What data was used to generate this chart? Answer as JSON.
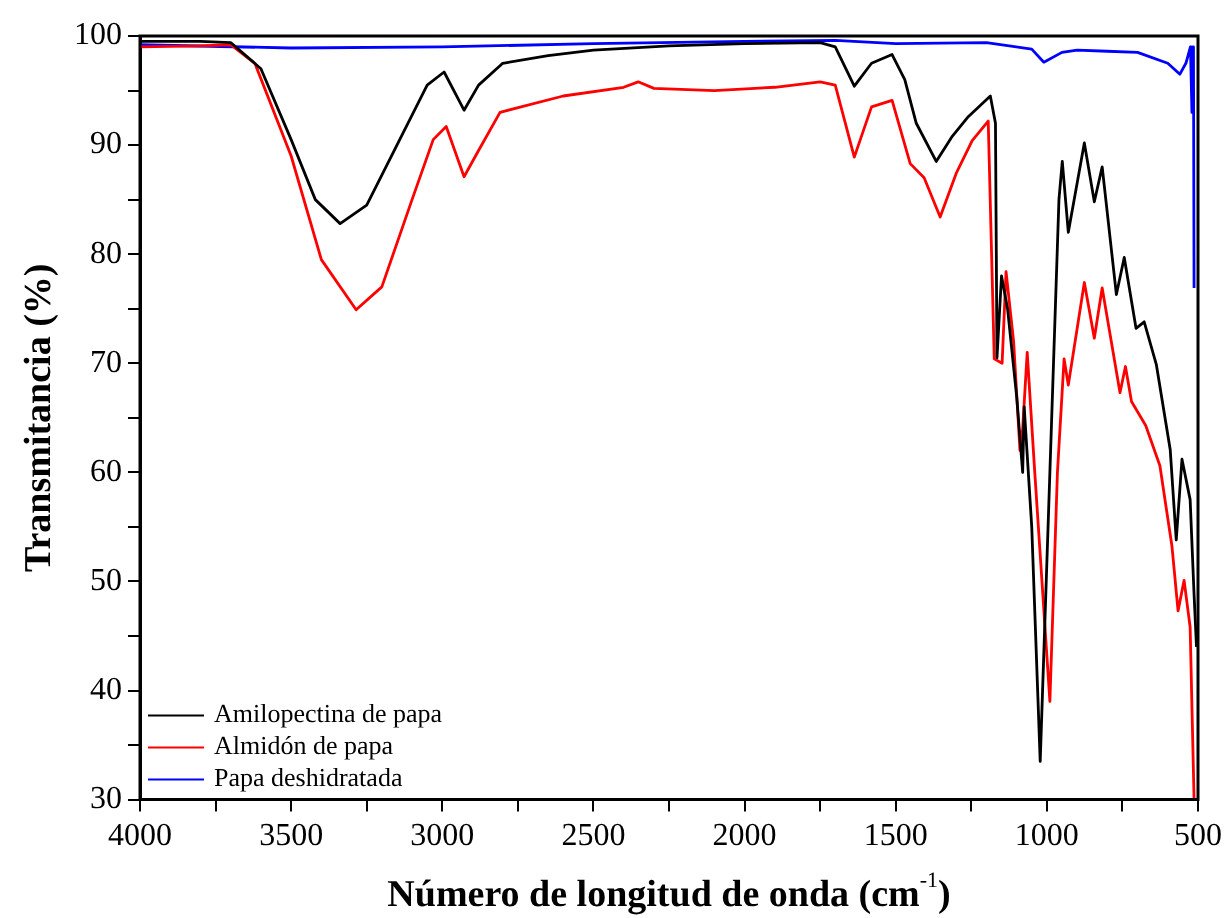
{
  "chart_data": {
    "type": "line",
    "xlabel": "Número de longitud de onda (cm$^{-1}$)",
    "ylabel": "Transmitancia (%)",
    "xlim": [
      4000,
      500
    ],
    "ylim": [
      30,
      100
    ],
    "xticks": [
      4000,
      {
        "value": 3750,
        "label": null
      },
      3500,
      {
        "value": 3250,
        "label": null
      },
      3000,
      {
        "value": 2750,
        "label": null
      },
      2500,
      {
        "value": 2250,
        "label": null
      },
      2000,
      {
        "value": 1750,
        "label": null
      },
      1500,
      {
        "value": 1250,
        "label": null
      },
      1000,
      {
        "value": 750,
        "label": null
      },
      500
    ],
    "yticks": [
      30,
      {
        "value": 35,
        "label": null
      },
      40,
      {
        "value": 45,
        "label": null
      },
      50,
      {
        "value": 55,
        "label": null
      },
      60,
      {
        "value": 65,
        "label": null
      },
      70,
      {
        "value": 75,
        "label": null
      },
      80,
      {
        "value": 85,
        "label": null
      },
      90,
      {
        "value": 95,
        "label": null
      },
      100
    ],
    "grid": false,
    "legend": "bottom left",
    "marker": "none",
    "line_style": "solid",
    "series": [
      {
        "name": "Amilopectina de papa",
        "color": "#000000",
        "x": [
          4000,
          3800,
          3700,
          3600,
          3500,
          3420,
          3338,
          3250,
          3150,
          3050,
          2994,
          2928,
          2880,
          2800,
          2650,
          2500,
          2250,
          2000,
          1750,
          1700,
          1637,
          1580,
          1512,
          1470,
          1432,
          1366,
          1313,
          1260,
          1187,
          1170,
          1165,
          1150,
          1130,
          1100,
          1080,
          1075,
          1050,
          1022,
          990,
          960,
          949,
          929,
          876,
          843,
          817,
          770,
          744,
          705,
          678,
          638,
          592,
          572,
          553,
          526,
          513,
          505
        ],
        "values": [
          99.5,
          99.5,
          99.4,
          97,
          90.5,
          85,
          82.8,
          84.5,
          90,
          95.5,
          96.7,
          93.2,
          95.5,
          97.5,
          98.2,
          98.7,
          99.1,
          99.3,
          99.4,
          99,
          95.4,
          97.5,
          98.3,
          96,
          92,
          88.5,
          90.8,
          92.6,
          94.5,
          92,
          70.5,
          78,
          75,
          67,
          60,
          66,
          55,
          33.5,
          60,
          85,
          88.5,
          82,
          90.2,
          84.8,
          88,
          76.3,
          79.7,
          73.2,
          73.8,
          69.9,
          62.1,
          53.8,
          61.2,
          57.5,
          48.8,
          44
        ]
      },
      {
        "name": "Almidón de papa",
        "color": "#ff0000",
        "x": [
          4000,
          3800,
          3700,
          3620,
          3500,
          3400,
          3285,
          3200,
          3100,
          3030,
          2987,
          2928,
          2880,
          2809,
          2600,
          2400,
          2352,
          2300,
          2100,
          1900,
          1750,
          1700,
          1637,
          1580,
          1512,
          1452,
          1406,
          1353,
          1300,
          1247,
          1194,
          1174,
          1148,
          1135,
          1110,
          1089,
          1080,
          1065,
          1040,
          990,
          965,
          943,
          929,
          876,
          843,
          817,
          758,
          740,
          720,
          673,
          626,
          586,
          566,
          546,
          526,
          513
        ],
        "values": [
          99,
          99.1,
          99.2,
          97.5,
          89,
          79.5,
          74.9,
          77,
          85,
          90.5,
          91.7,
          87.1,
          89.5,
          93,
          94.5,
          95.3,
          95.8,
          95.2,
          95,
          95.3,
          95.8,
          95.5,
          88.9,
          93.5,
          94.1,
          88.3,
          87,
          83.4,
          87.4,
          90.4,
          92.2,
          70.4,
          70,
          78.4,
          72,
          62,
          64,
          71,
          60,
          39,
          60,
          70.4,
          68,
          77.4,
          72.3,
          76.9,
          67.3,
          69.7,
          66.5,
          64.3,
          60.6,
          53.2,
          47.3,
          50.1,
          45.8,
          30
        ]
      },
      {
        "name": "Papa deshidratada",
        "color": "#0000ff",
        "x": [
          4000,
          3500,
          3000,
          2500,
          2000,
          1700,
          1500,
          1200,
          1050,
          1010,
          950,
          900,
          800,
          700,
          600,
          560,
          540,
          525,
          520,
          515,
          513
        ],
        "values": [
          99.2,
          98.9,
          99,
          99.3,
          99.5,
          99.6,
          99.3,
          99.4,
          98.8,
          97.6,
          98.5,
          98.7,
          98.6,
          98.5,
          97.5,
          96.5,
          97.5,
          99,
          93,
          99,
          76.9
        ]
      }
    ]
  }
}
